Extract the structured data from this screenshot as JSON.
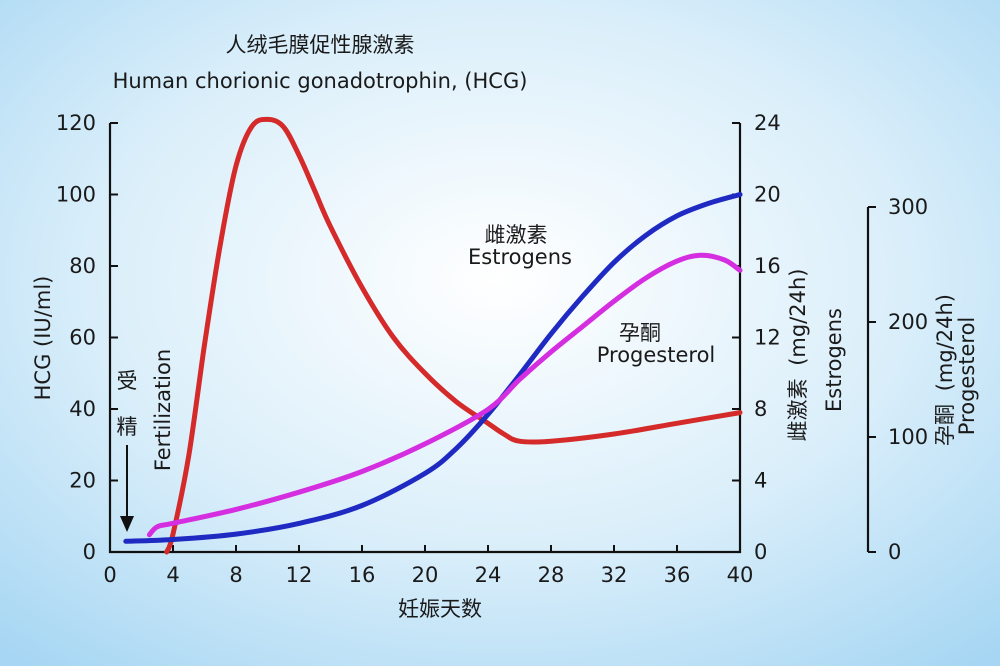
{
  "chart_data": {
    "type": "line",
    "title": "人绒毛膜促性腺激素",
    "subtitle": "Human chorionic gonadotrophin, (HCG)",
    "xlabel": "妊娠天数",
    "xlim": [
      0,
      40
    ],
    "x_ticks": [
      "0",
      "4",
      "8",
      "12",
      "16",
      "20",
      "24",
      "28",
      "32",
      "36",
      "40"
    ],
    "axes": {
      "hcg": {
        "label": "HCG (IU/ml)",
        "range": [
          0,
          120
        ],
        "ticks": [
          "0",
          "20",
          "40",
          "60",
          "80",
          "100",
          "120"
        ]
      },
      "estrogen": {
        "label_cn": "雌激素",
        "label_unit": "(mg/24h)",
        "label_en": "Estrogens",
        "range": [
          0,
          24
        ],
        "ticks": [
          "0",
          "4",
          "8",
          "12",
          "16",
          "20",
          "24"
        ]
      },
      "progesterone": {
        "label_cn": "孕酮",
        "label_unit": "(mg/24h)",
        "label_en": "Progesterol",
        "range": [
          0,
          300
        ],
        "ticks": [
          "0",
          "100",
          "200",
          "300"
        ]
      }
    },
    "annotation": {
      "cn_1": "受",
      "cn_2": "精",
      "en": "Fertilization"
    },
    "series": [
      {
        "name_cn": "",
        "name_en": "",
        "axis": "hcg",
        "color": "#d42a2a",
        "x": [
          3.6,
          4,
          5,
          6,
          7,
          8,
          9,
          10,
          11,
          12,
          13,
          14,
          16,
          18,
          20,
          22,
          24,
          25,
          26,
          28,
          32,
          36,
          40
        ],
        "y": [
          0,
          5,
          27,
          58,
          86,
          108,
          119,
          121,
          119,
          111,
          101,
          91,
          74,
          60,
          50,
          42,
          36,
          33,
          31,
          31,
          33,
          36,
          39
        ]
      },
      {
        "name_cn": "雌激素",
        "name_en": "Estrogens",
        "axis": "estrogen",
        "color": "#1f2ac2",
        "x": [
          1,
          4,
          8,
          12,
          16,
          20,
          22,
          24,
          26,
          28,
          30,
          32,
          34,
          36,
          38,
          40
        ],
        "y": [
          0.6,
          0.7,
          1.0,
          1.6,
          2.6,
          4.4,
          5.8,
          7.7,
          9.9,
          12.2,
          14.3,
          16.2,
          17.7,
          18.8,
          19.5,
          20.0
        ]
      },
      {
        "name_cn": "孕酮",
        "name_en": "Progesterol",
        "axis": "progesterone",
        "color": "#d42ee0",
        "x": [
          2.5,
          3,
          4,
          8,
          12,
          16,
          20,
          24,
          26,
          28,
          30,
          32,
          34,
          36,
          37.5,
          39,
          40
        ],
        "y": [
          15,
          22,
          25,
          37,
          52,
          70,
          94,
          124,
          150,
          174,
          196,
          218,
          238,
          253,
          258,
          254,
          245
        ]
      }
    ]
  }
}
